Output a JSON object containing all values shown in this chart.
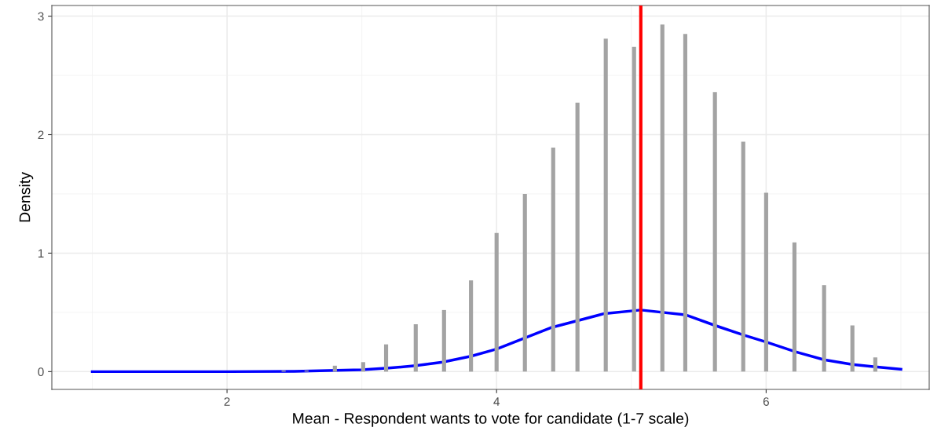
{
  "chart_data": {
    "type": "bar",
    "xlabel": "Mean - Respondent wants to vote for candidate (1-7 scale)",
    "ylabel": "Density",
    "xlim": [
      0.7,
      7.21
    ],
    "ylim": [
      -0.15,
      3.09
    ],
    "xticks": [
      2,
      4,
      6
    ],
    "yticks": [
      0,
      1,
      2,
      3
    ],
    "grid": true,
    "series": [
      {
        "color": "#a3a3a3",
        "x": [
          2.42,
          2.59,
          2.8,
          3.01,
          3.18,
          3.4,
          3.61,
          3.81,
          4.0,
          4.21,
          4.42,
          4.6,
          4.81,
          5.02,
          5.23,
          5.4,
          5.62,
          5.83,
          6.0,
          6.21,
          6.43,
          6.64,
          6.81
        ],
        "values": [
          0.01,
          0.01,
          0.05,
          0.08,
          0.23,
          0.4,
          0.52,
          0.77,
          1.17,
          1.5,
          1.89,
          2.27,
          2.81,
          2.74,
          2.93,
          2.85,
          2.36,
          1.94,
          1.51,
          1.09,
          0.73,
          0.39,
          0.12
        ]
      },
      {
        "type": "line",
        "color": "#0000ff",
        "x": [
          1.0,
          2.0,
          2.5,
          3.0,
          3.2,
          3.4,
          3.6,
          3.81,
          4.0,
          4.2,
          4.4,
          4.6,
          4.8,
          5.07,
          5.4,
          5.62,
          5.83,
          6.0,
          6.21,
          6.43,
          6.64,
          6.81,
          7.0
        ],
        "values": [
          0.0,
          0.0,
          0.002,
          0.015,
          0.03,
          0.05,
          0.08,
          0.13,
          0.19,
          0.28,
          0.37,
          0.43,
          0.49,
          0.52,
          0.48,
          0.39,
          0.31,
          0.25,
          0.17,
          0.1,
          0.06,
          0.04,
          0.02
        ]
      }
    ],
    "ref_lines": [
      {
        "axis": "x",
        "value": 5.07,
        "color": "#ff0000"
      }
    ]
  }
}
